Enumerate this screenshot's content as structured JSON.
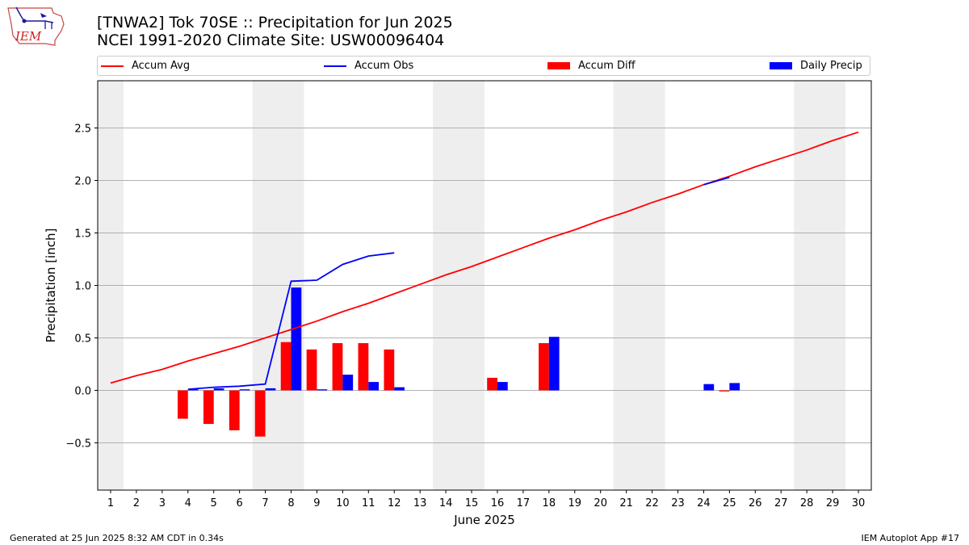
{
  "logo": {
    "text": "IEM",
    "icon": "iem-iowa-logo-icon",
    "color": "#cc2222"
  },
  "header": {
    "title": "[TNWA2] Tok 70SE :: Precipitation for Jun 2025",
    "subtitle": "NCEI 1991-2020 Climate Site: USW00096404"
  },
  "legend": {
    "items": [
      {
        "label": "Accum Avg",
        "kind": "line",
        "color": "#ff0000"
      },
      {
        "label": "Accum Obs",
        "kind": "line",
        "color": "#0000ff"
      },
      {
        "label": "Accum Diff",
        "kind": "bar",
        "color": "#ff0000"
      },
      {
        "label": "Daily Precip",
        "kind": "bar",
        "color": "#0000ff"
      }
    ]
  },
  "chart_data": {
    "type": "bar",
    "xlabel": "June 2025",
    "ylabel": "Precipitation [inch]",
    "xlim": [
      0.5,
      30.5
    ],
    "ylim": [
      -0.95,
      2.95
    ],
    "x_ticks": [
      "1",
      "2",
      "3",
      "4",
      "5",
      "6",
      "7",
      "8",
      "9",
      "10",
      "11",
      "12",
      "13",
      "14",
      "15",
      "16",
      "17",
      "18",
      "19",
      "20",
      "21",
      "22",
      "23",
      "24",
      "25",
      "26",
      "27",
      "28",
      "29",
      "30"
    ],
    "y_ticks": [
      {
        "value": -0.5,
        "label": "−0.5"
      },
      {
        "value": 0.0,
        "label": "0.0"
      },
      {
        "value": 0.5,
        "label": "0.5"
      },
      {
        "value": 1.0,
        "label": "1.0"
      },
      {
        "value": 1.5,
        "label": "1.5"
      },
      {
        "value": 2.0,
        "label": "2.0"
      },
      {
        "value": 2.5,
        "label": "2.5"
      }
    ],
    "grid": "horizontal",
    "weekend_shading": [
      [
        0.5,
        1.5
      ],
      [
        6.5,
        8.5
      ],
      [
        13.5,
        15.5
      ],
      [
        20.5,
        22.5
      ],
      [
        27.5,
        29.5
      ]
    ],
    "shading_color": "#eeeeee",
    "series": [
      {
        "name": "Accum Avg",
        "kind": "line",
        "color": "#ff0000",
        "x": [
          1,
          2,
          3,
          4,
          5,
          6,
          7,
          8,
          9,
          10,
          11,
          12,
          13,
          14,
          15,
          16,
          17,
          18,
          19,
          20,
          21,
          22,
          23,
          24,
          25,
          26,
          27,
          28,
          29,
          30
        ],
        "values": [
          0.07,
          0.14,
          0.2,
          0.28,
          0.35,
          0.42,
          0.5,
          0.58,
          0.66,
          0.75,
          0.83,
          0.92,
          1.01,
          1.1,
          1.18,
          1.27,
          1.36,
          1.45,
          1.53,
          1.62,
          1.7,
          1.79,
          1.87,
          1.96,
          2.04,
          2.13,
          2.21,
          2.29,
          2.38,
          2.46
        ]
      },
      {
        "name": "Accum Obs",
        "kind": "line",
        "color": "#0000ff",
        "segments": [
          {
            "x": [
              4,
              5,
              6,
              7,
              8,
              9,
              10,
              11,
              12
            ],
            "values": [
              0.01,
              0.03,
              0.04,
              0.06,
              1.04,
              1.05,
              1.2,
              1.28,
              1.31
            ]
          },
          {
            "x": [
              24,
              25
            ],
            "values": [
              1.96,
              2.03
            ]
          }
        ]
      },
      {
        "name": "Accum Diff",
        "kind": "bar",
        "color": "#ff0000",
        "x": [
          4,
          5,
          6,
          7,
          8,
          9,
          10,
          11,
          12,
          16,
          18,
          25
        ],
        "values": [
          -0.27,
          -0.32,
          -0.38,
          -0.44,
          0.46,
          0.39,
          0.45,
          0.45,
          0.39,
          0.12,
          0.45,
          -0.01
        ]
      },
      {
        "name": "Daily Precip",
        "kind": "bar",
        "color": "#0000ff",
        "x": [
          4,
          5,
          6,
          7,
          8,
          9,
          10,
          11,
          12,
          16,
          18,
          24,
          25
        ],
        "values": [
          0.01,
          0.02,
          0.01,
          0.02,
          0.98,
          0.01,
          0.15,
          0.08,
          0.03,
          0.08,
          0.51,
          0.06,
          0.07
        ]
      }
    ]
  },
  "footer": {
    "generated": "Generated at 25 Jun 2025 8:32 AM CDT in 0.34s",
    "app": "IEM Autoplot App #17"
  }
}
